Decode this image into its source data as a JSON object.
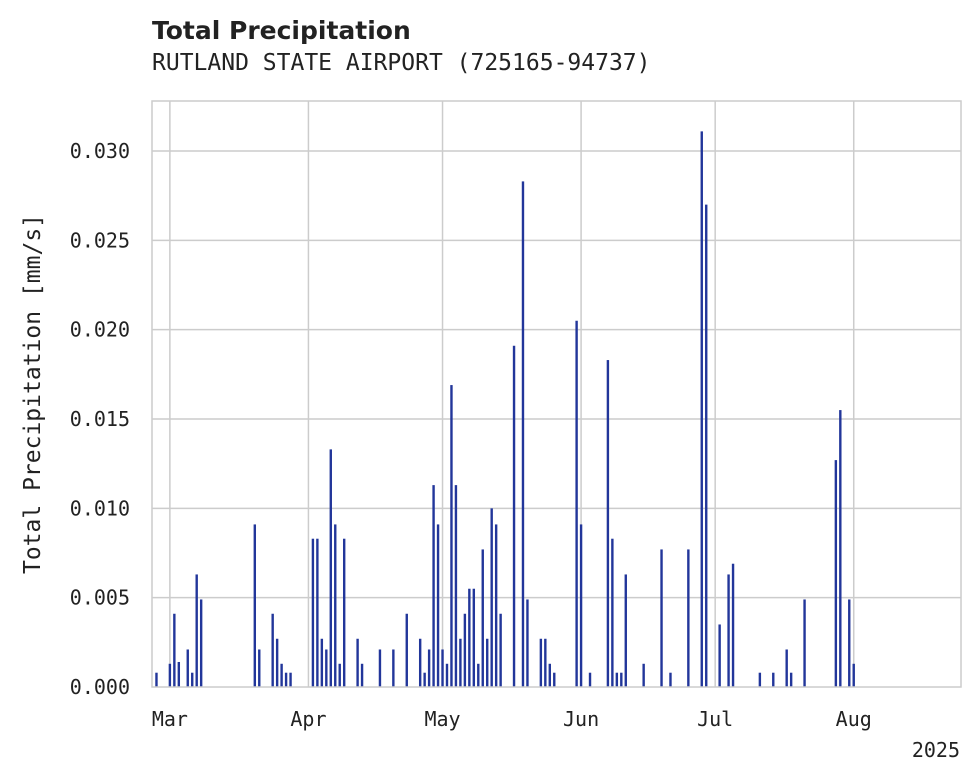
{
  "chart_data": {
    "type": "bar",
    "title": "Total Precipitation",
    "subtitle": "RUTLAND STATE AIRPORT (725165-94737)",
    "xlabel": "",
    "ylabel": "Total Precipitation [mm/s]",
    "ylim": [
      0,
      0.0328
    ],
    "xlim": [
      "2025-02-25",
      "2025-08-25"
    ],
    "yticks": [
      "0.000",
      "0.005",
      "0.010",
      "0.015",
      "0.020",
      "0.025",
      "0.030"
    ],
    "ytick_values": [
      0,
      0.005,
      0.01,
      0.015,
      0.02,
      0.025,
      0.03
    ],
    "xticks": [
      "Mar",
      "Apr",
      "May",
      "Jun",
      "Jul",
      "Aug"
    ],
    "xtick_dates": [
      "2025-03-01",
      "2025-04-01",
      "2025-05-01",
      "2025-06-01",
      "2025-07-01",
      "2025-08-01"
    ],
    "x_offset_label": "2025",
    "grid": true,
    "bar_color": "#22369a",
    "series": [
      {
        "x": [
          "2025-02-26",
          "2025-03-01",
          "2025-03-02",
          "2025-03-03",
          "2025-03-05",
          "2025-03-06",
          "2025-03-07",
          "2025-03-08",
          "2025-03-20",
          "2025-03-21",
          "2025-03-24",
          "2025-03-25",
          "2025-03-26",
          "2025-03-27",
          "2025-03-28",
          "2025-04-02",
          "2025-04-03",
          "2025-04-04",
          "2025-04-05",
          "2025-04-06",
          "2025-04-07",
          "2025-04-08",
          "2025-04-09",
          "2025-04-12",
          "2025-04-13",
          "2025-04-17",
          "2025-04-20",
          "2025-04-23",
          "2025-04-26",
          "2025-04-27",
          "2025-04-28",
          "2025-04-29",
          "2025-04-30",
          "2025-05-01",
          "2025-05-02",
          "2025-05-03",
          "2025-05-04",
          "2025-05-05",
          "2025-05-06",
          "2025-05-07",
          "2025-05-08",
          "2025-05-09",
          "2025-05-10",
          "2025-05-11",
          "2025-05-12",
          "2025-05-13",
          "2025-05-14",
          "2025-05-17",
          "2025-05-19",
          "2025-05-20",
          "2025-05-23",
          "2025-05-24",
          "2025-05-25",
          "2025-05-26",
          "2025-05-31",
          "2025-06-01",
          "2025-06-03",
          "2025-06-07",
          "2025-06-08",
          "2025-06-09",
          "2025-06-10",
          "2025-06-11",
          "2025-06-15",
          "2025-06-19",
          "2025-06-21",
          "2025-06-25",
          "2025-06-28",
          "2025-06-29",
          "2025-07-02",
          "2025-07-04",
          "2025-07-05",
          "2025-07-11",
          "2025-07-14",
          "2025-07-17",
          "2025-07-18",
          "2025-07-21",
          "2025-07-28",
          "2025-07-29",
          "2025-07-31",
          "2025-08-01"
        ],
        "values": [
          0.0008,
          0.0013,
          0.0041,
          0.0014,
          0.0021,
          0.0008,
          0.0063,
          0.0049,
          0.0091,
          0.0021,
          0.0041,
          0.0027,
          0.0013,
          0.0008,
          0.0008,
          0.0083,
          0.0083,
          0.0027,
          0.0021,
          0.0133,
          0.0091,
          0.0013,
          0.0083,
          0.0027,
          0.0013,
          0.0021,
          0.0021,
          0.0041,
          0.0027,
          0.0008,
          0.0021,
          0.0113,
          0.0091,
          0.0021,
          0.0013,
          0.0169,
          0.0113,
          0.0027,
          0.0041,
          0.0055,
          0.0055,
          0.0013,
          0.0077,
          0.0027,
          0.01,
          0.0091,
          0.0041,
          0.0191,
          0.0283,
          0.0049,
          0.0027,
          0.0027,
          0.0013,
          0.0008,
          0.0205,
          0.0091,
          0.0008,
          0.0183,
          0.0083,
          0.0008,
          0.0008,
          0.0063,
          0.0013,
          0.0077,
          0.0008,
          0.0077,
          0.0311,
          0.027,
          0.0035,
          0.0063,
          0.0069,
          0.0008,
          0.0008,
          0.0021,
          0.0008,
          0.0049,
          0.0127,
          0.0155,
          0.0049,
          0.0013
        ]
      }
    ]
  }
}
